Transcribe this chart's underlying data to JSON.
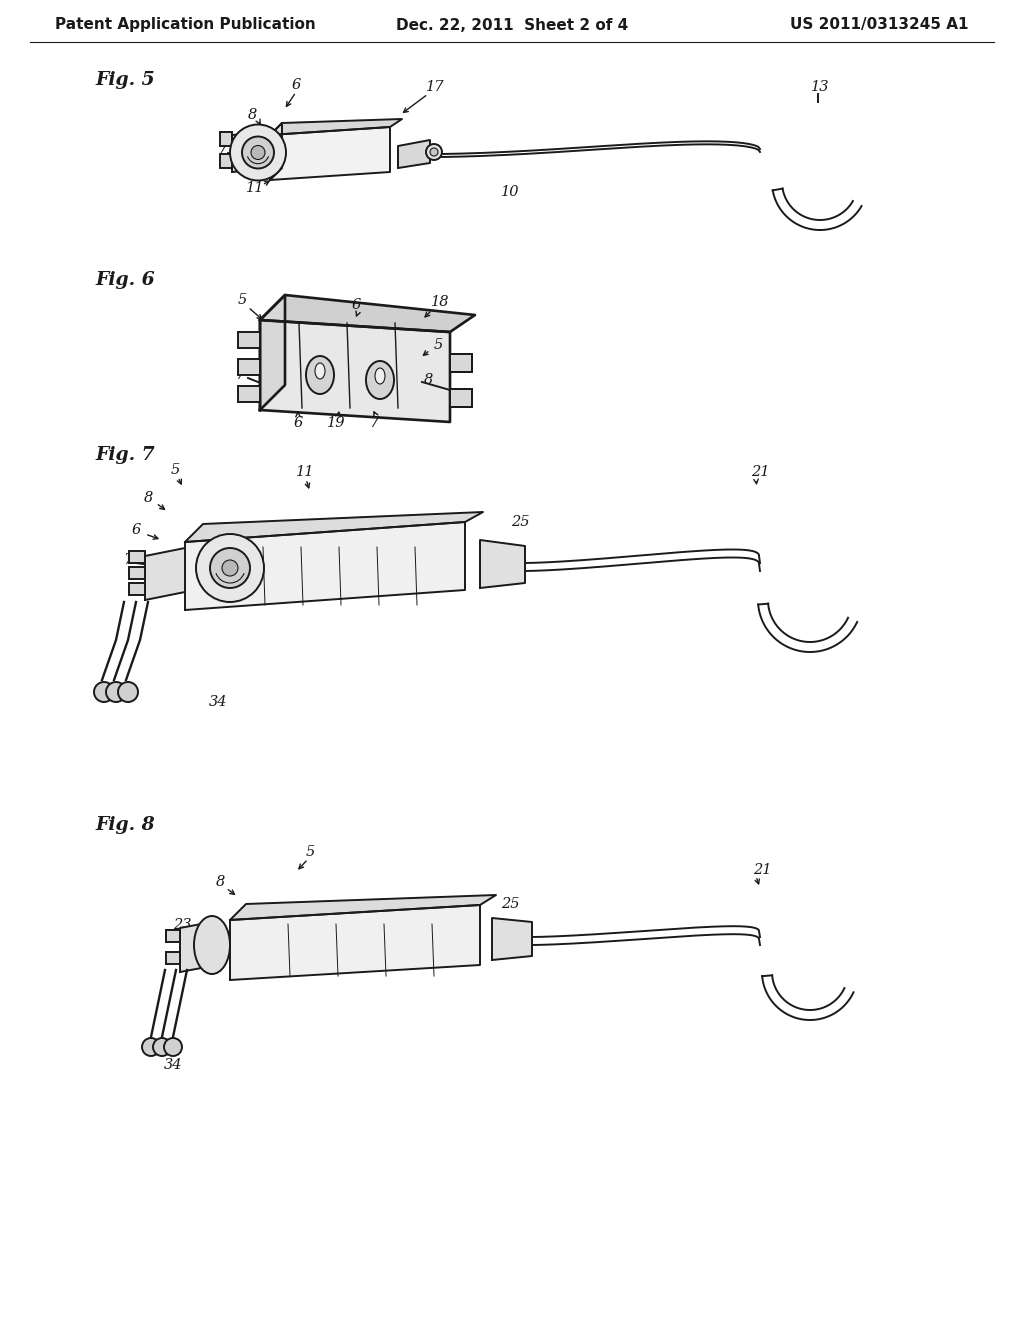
{
  "background_color": "#ffffff",
  "header_left": "Patent Application Publication",
  "header_center": "Dec. 22, 2011  Sheet 2 of 4",
  "header_right": "US 2011/0313245 A1",
  "line_color": "#1a1a1a",
  "line_width": 1.4,
  "label_fontsize": 10.5,
  "figlabel_fontsize": 13.5,
  "fig5_label": "Fig. 5",
  "fig6_label": "Fig. 6",
  "fig7_label": "Fig. 7",
  "fig8_label": "Fig. 8"
}
